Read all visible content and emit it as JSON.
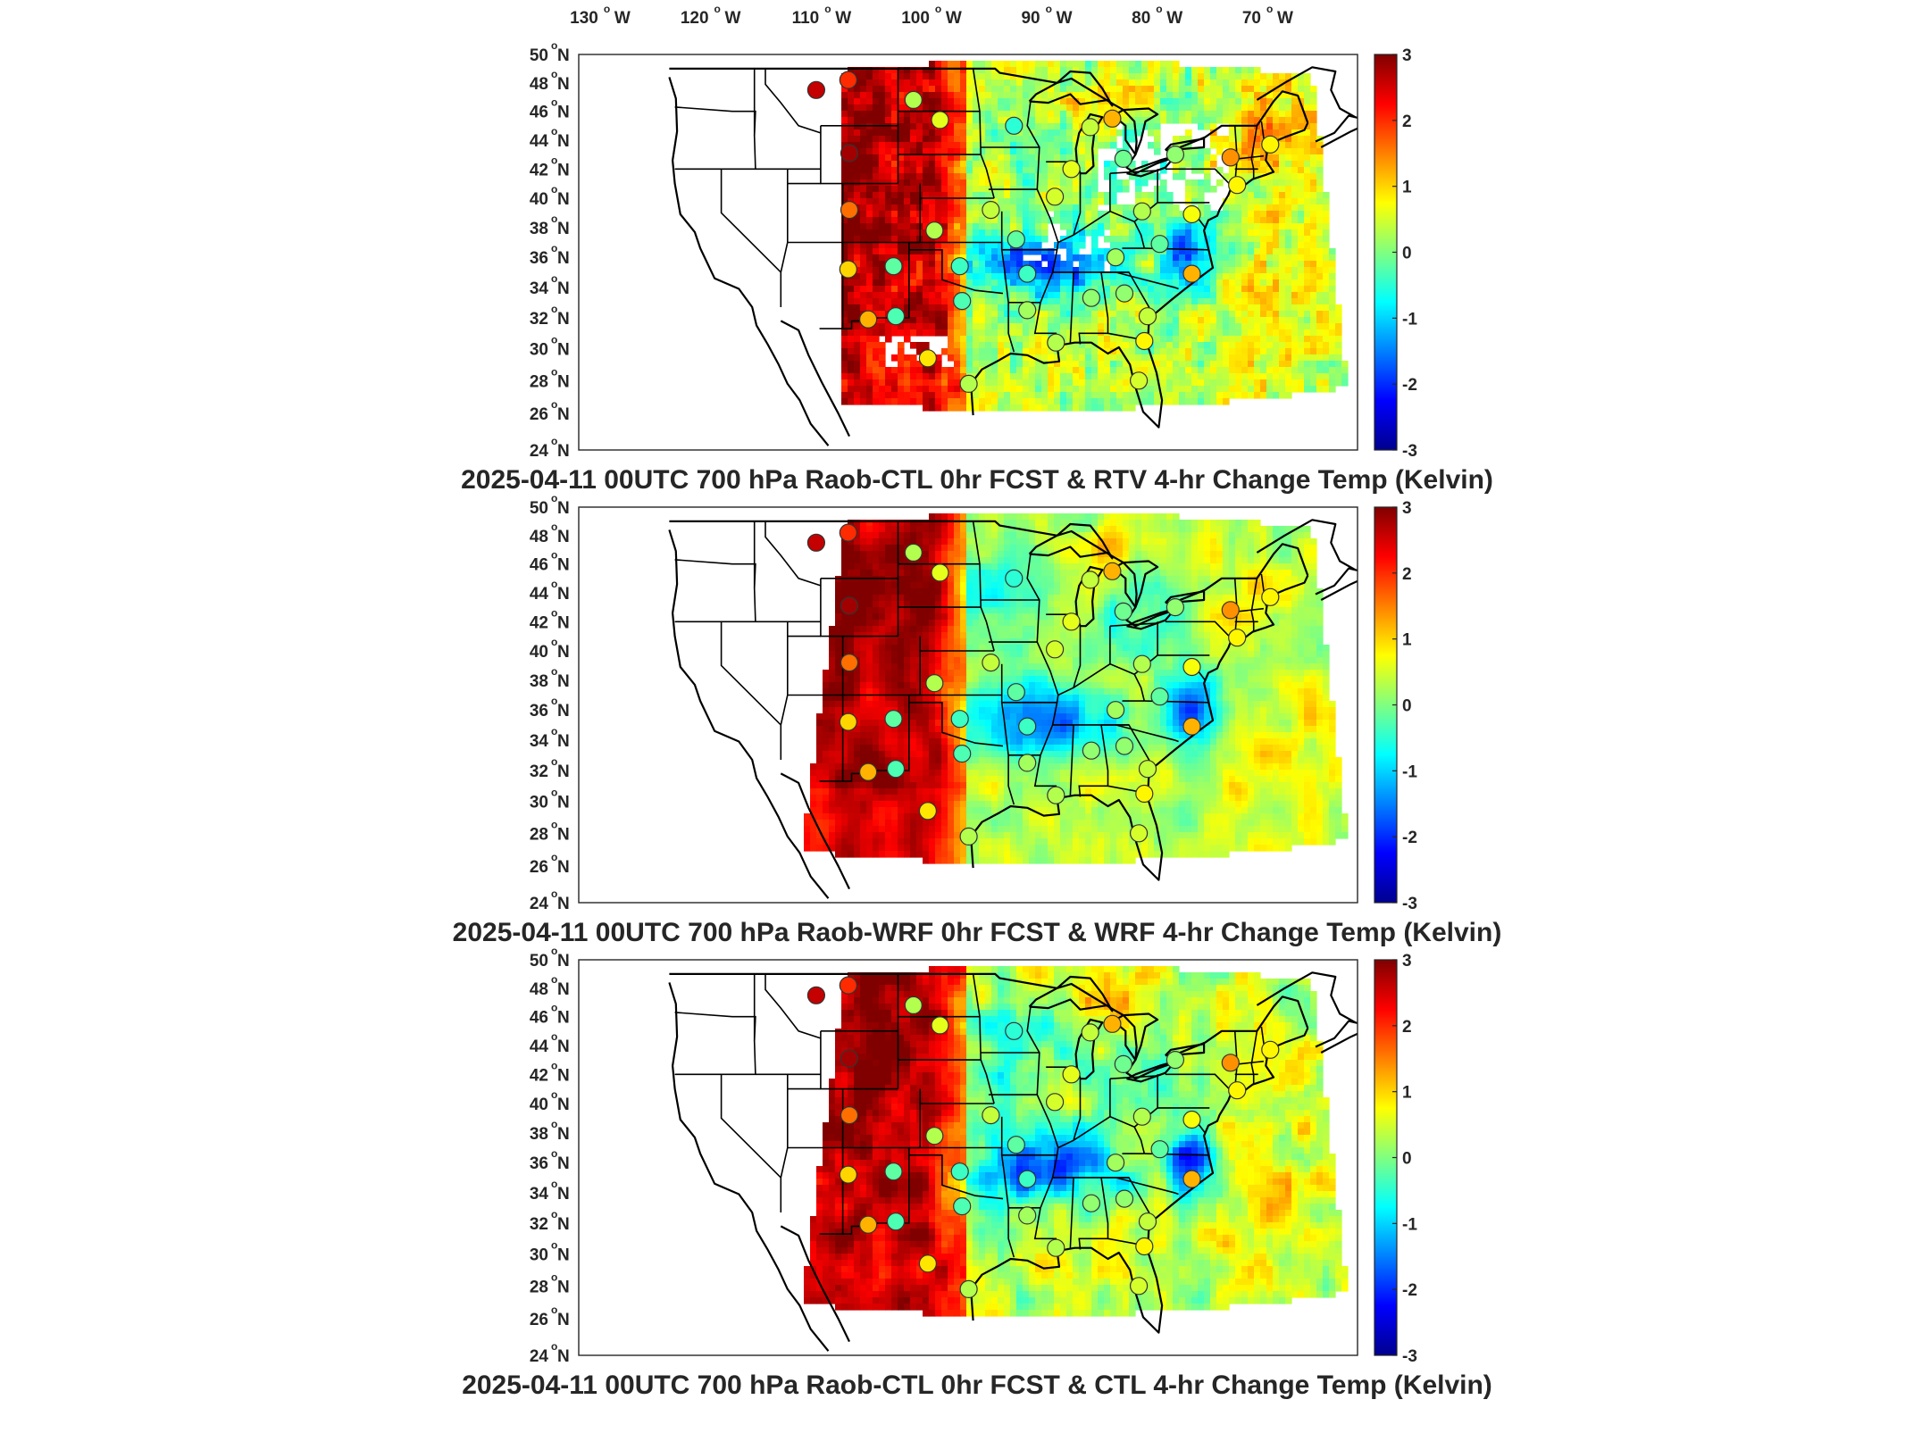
{
  "lon_labels": [
    "130",
    "120",
    "110",
    "100",
    "90",
    "80",
    "70"
  ],
  "lon_suffix": "W",
  "lat_labels": [
    "50",
    "48",
    "46",
    "44",
    "42",
    "40",
    "38",
    "36",
    "34",
    "32",
    "30",
    "28",
    "26",
    "24"
  ],
  "lat_suffix": "N",
  "degree_symbol": "o",
  "colorbar": {
    "ticks": [
      "3",
      "2",
      "1",
      "0",
      "-1",
      "-2",
      "-3"
    ],
    "colormap": [
      "#00008f",
      "#0000ff",
      "#0080ff",
      "#00ffff",
      "#80ff80",
      "#ffff00",
      "#ff8000",
      "#ff0000",
      "#800000"
    ]
  },
  "panels": [
    {
      "title": "2025-04-11 00UTC 700 hPa Raob-CTL 0hr FCST & RTV 4-hr Change Temp (Kelvin)",
      "field": "RTV"
    },
    {
      "title": "2025-04-11 00UTC 700 hPa Raob-WRF 0hr FCST & WRF 4-hr Change Temp (Kelvin)",
      "field": "WRF"
    },
    {
      "title": "2025-04-11 00UTC 700 hPa Raob-CTL 0hr FCST & CTL 4-hr Change Temp (Kelvin)",
      "field": "CTL"
    }
  ],
  "raob_stations": [
    {
      "lon": -111.4,
      "lat": 47.5,
      "v": 2.6
    },
    {
      "lon": -108.5,
      "lat": 48.2,
      "v": 2.0
    },
    {
      "lon": -108.4,
      "lat": 43.1,
      "v": 2.8
    },
    {
      "lon": -108.4,
      "lat": 39.2,
      "v": 1.6
    },
    {
      "lon": -108.5,
      "lat": 35.2,
      "v": 1.0
    },
    {
      "lon": -106.7,
      "lat": 31.9,
      "v": 1.2
    },
    {
      "lon": -104.2,
      "lat": 32.1,
      "v": -0.3
    },
    {
      "lon": -104.4,
      "lat": 35.4,
      "v": -0.2
    },
    {
      "lon": -102.6,
      "lat": 46.8,
      "v": 0.3
    },
    {
      "lon": -100.2,
      "lat": 45.4,
      "v": 0.6
    },
    {
      "lon": -100.7,
      "lat": 37.8,
      "v": 0.3
    },
    {
      "lon": -101.3,
      "lat": 29.4,
      "v": 0.9
    },
    {
      "lon": -98.4,
      "lat": 35.4,
      "v": -0.4
    },
    {
      "lon": -98.2,
      "lat": 33.1,
      "v": -0.3
    },
    {
      "lon": -97.6,
      "lat": 27.8,
      "v": 0.3
    },
    {
      "lon": -95.6,
      "lat": 39.2,
      "v": 0.4
    },
    {
      "lon": -93.5,
      "lat": 45.0,
      "v": -0.5
    },
    {
      "lon": -93.3,
      "lat": 37.2,
      "v": -0.2
    },
    {
      "lon": -92.3,
      "lat": 34.9,
      "v": -0.4
    },
    {
      "lon": -92.3,
      "lat": 32.5,
      "v": 0.2
    },
    {
      "lon": -89.7,
      "lat": 30.4,
      "v": 0.3
    },
    {
      "lon": -89.8,
      "lat": 40.1,
      "v": 0.5
    },
    {
      "lon": -88.3,
      "lat": 42.0,
      "v": 0.6
    },
    {
      "lon": -86.5,
      "lat": 33.3,
      "v": 0.1
    },
    {
      "lon": -86.6,
      "lat": 44.9,
      "v": 0.4
    },
    {
      "lon": -84.6,
      "lat": 45.5,
      "v": 1.2
    },
    {
      "lon": -83.6,
      "lat": 42.7,
      "v": -0.1
    },
    {
      "lon": -83.5,
      "lat": 33.6,
      "v": 0.1
    },
    {
      "lon": -82.2,
      "lat": 28.0,
      "v": 0.5
    },
    {
      "lon": -81.7,
      "lat": 30.5,
      "v": 0.8
    },
    {
      "lon": -81.9,
      "lat": 39.1,
      "v": 0.3
    },
    {
      "lon": -84.3,
      "lat": 36.0,
      "v": 0.2
    },
    {
      "lon": -81.4,
      "lat": 32.1,
      "v": 0.4
    },
    {
      "lon": -80.3,
      "lat": 36.9,
      "v": -0.2
    },
    {
      "lon": -78.9,
      "lat": 43.0,
      "v": 0.1
    },
    {
      "lon": -77.4,
      "lat": 38.9,
      "v": 0.7
    },
    {
      "lon": -77.4,
      "lat": 34.9,
      "v": 1.2
    },
    {
      "lon": -73.9,
      "lat": 42.8,
      "v": 1.4
    },
    {
      "lon": -73.3,
      "lat": 40.9,
      "v": 0.8
    },
    {
      "lon": -70.3,
      "lat": 43.7,
      "v": 0.8
    }
  ]
}
